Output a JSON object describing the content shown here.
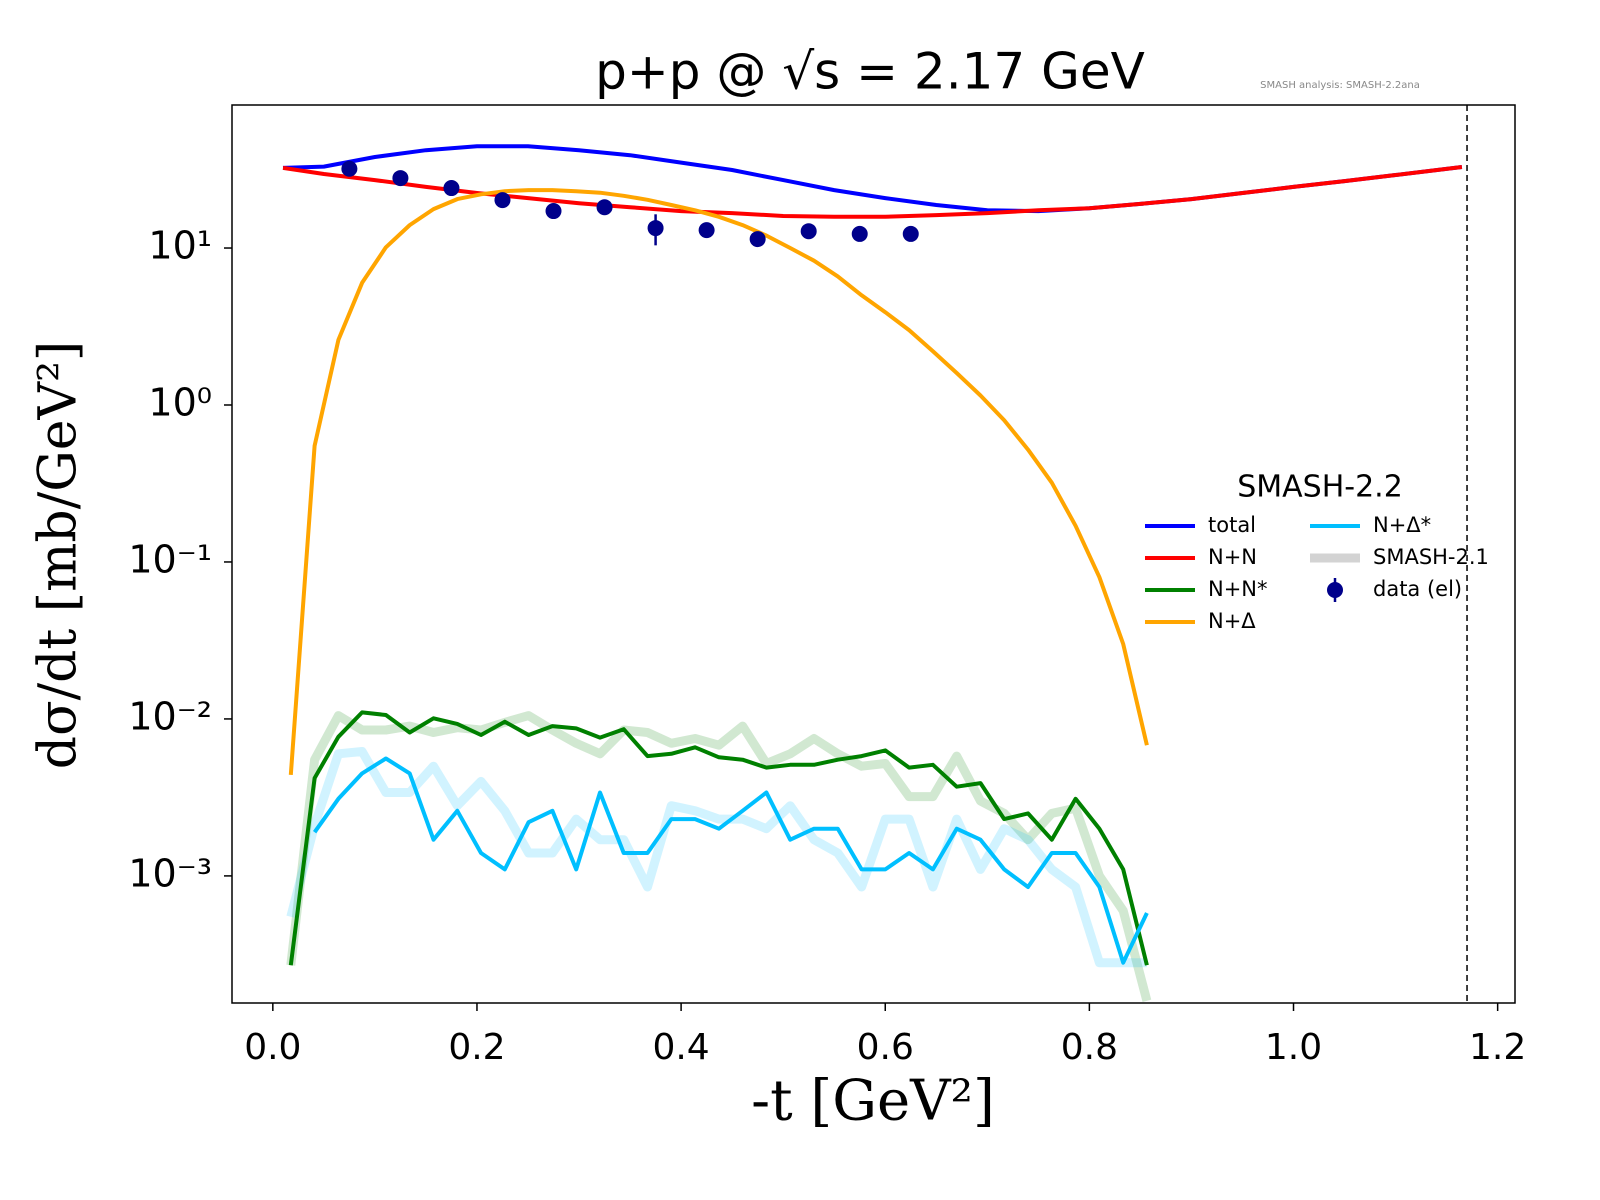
{
  "chart_data": {
    "type": "line",
    "title": "p+p @ √s = 2.17 GeV",
    "annotation": "SMASH analysis: SMASH-2.2ana",
    "x_label": "-t [GeV²]",
    "y_label": "dσ/dt [mb/GeV²]",
    "legend_title": "SMASH-2.2",
    "legend": "center right",
    "log_y": true,
    "xlim": [
      -0.04,
      1.217
    ],
    "ylim": [
      0.000155,
      81.5
    ],
    "xticks": [
      {
        "value": 0,
        "label": "0.0"
      },
      0.2,
      0.4,
      0.6,
      0.8,
      {
        "value": 1,
        "label": "1.0"
      },
      1.2
    ],
    "yticks": [
      {
        "value": 0.001,
        "label": "10⁻³"
      },
      {
        "value": 0.01,
        "label": "10⁻²"
      },
      {
        "value": 0.1,
        "label": "10⁻¹"
      },
      {
        "value": 1,
        "label": "10⁰"
      },
      {
        "value": 10,
        "label": "10¹"
      }
    ],
    "vline": 1.17,
    "x": [
      0.0176,
      0.0409,
      0.0642,
      0.0875,
      0.1108,
      0.1341,
      0.1574,
      0.1807,
      0.204,
      0.2273,
      0.2506,
      0.2739,
      0.2972,
      0.3205,
      0.3438,
      0.3671,
      0.3904,
      0.4137,
      0.437,
      0.4603,
      0.4836,
      0.5069,
      0.5302,
      0.5535,
      0.5768,
      0.6001,
      0.6234,
      0.6467,
      0.67,
      0.6933,
      0.7166,
      0.7399,
      0.7632,
      0.7865,
      0.8098,
      0.8331,
      0.8564
    ],
    "series": [
      {
        "name": "total",
        "color": "#0000ff",
        "x": [
          0.01,
          0.05,
          0.1,
          0.15,
          0.2,
          0.25,
          0.3,
          0.35,
          0.4,
          0.45,
          0.5,
          0.55,
          0.6,
          0.65,
          0.7,
          0.75,
          0.8,
          0.85,
          0.9,
          0.95,
          1.0,
          1.05,
          1.1,
          1.165
        ],
        "values": [
          32.4,
          33,
          38,
          42,
          44.5,
          44.5,
          42,
          39,
          35,
          31.4,
          27.1,
          23.4,
          20.8,
          18.8,
          17.4,
          17.2,
          17.9,
          19.1,
          20.5,
          22.4,
          24.5,
          26.7,
          29.2,
          32.8
        ]
      },
      {
        "name": "N+N",
        "color": "#ff0000",
        "x": [
          0.01,
          0.05,
          0.1,
          0.15,
          0.2,
          0.25,
          0.3,
          0.35,
          0.4,
          0.45,
          0.5,
          0.55,
          0.6,
          0.65,
          0.7,
          0.75,
          0.8,
          0.85,
          0.9,
          0.95,
          1.0,
          1.05,
          1.1,
          1.165
        ],
        "values": [
          32.4,
          29.6,
          27.1,
          24.5,
          22.4,
          20.8,
          19.3,
          18.2,
          17.2,
          16.7,
          16.0,
          15.8,
          15.8,
          16.2,
          16.7,
          17.4,
          17.9,
          19.1,
          20.5,
          22.4,
          24.5,
          26.7,
          29.2,
          32.8
        ]
      },
      {
        "name": "N+N*",
        "color": "#008000",
        "values": [
          0.00027,
          0.0042,
          0.0077,
          0.011,
          0.0106,
          0.0082,
          0.0101,
          0.0093,
          0.0079,
          0.0096,
          0.0079,
          0.009,
          0.0087,
          0.0076,
          0.0086,
          0.0058,
          0.006,
          0.0066,
          0.0057,
          0.0055,
          0.0049,
          0.0051,
          0.0051,
          0.0055,
          0.0058,
          0.0063,
          0.0049,
          0.0051,
          0.0037,
          0.0039,
          0.0023,
          0.0025,
          0.0017,
          0.0031,
          0.002,
          0.0011,
          0.00027
        ]
      },
      {
        "name": "N+Δ",
        "color": "#ffa500",
        "values": [
          0.0044,
          0.55,
          2.6,
          6.0,
          10.1,
          14,
          17.7,
          20.5,
          22,
          23,
          23.4,
          23.4,
          23,
          22.5,
          21.5,
          20.3,
          18.8,
          17.4,
          15.8,
          14,
          12,
          10,
          8.3,
          6.6,
          5.0,
          3.9,
          3.0,
          2.2,
          1.6,
          1.15,
          0.8,
          0.52,
          0.32,
          0.17,
          0.08,
          0.03,
          0.0068
        ]
      },
      {
        "name": "N+Δ*",
        "color": "#00bfff",
        "values": [
          null,
          0.0019,
          0.0031,
          0.0045,
          0.0056,
          0.0045,
          0.0017,
          0.0026,
          0.0014,
          0.0011,
          0.0022,
          0.0026,
          0.0011,
          0.0034,
          0.0014,
          0.0014,
          0.0023,
          0.0023,
          0.002,
          0.0026,
          0.0034,
          0.0017,
          0.002,
          0.002,
          0.0011,
          0.0011,
          0.0014,
          0.0011,
          0.002,
          0.0017,
          0.0011,
          0.00085,
          0.0014,
          0.0014,
          0.00085,
          0.00028,
          0.00058
        ]
      }
    ],
    "reference": {
      "name": "SMASH-2.1",
      "color": "#d3d3d3",
      "lines": [
        {
          "color": "#008000",
          "values": [
            0.00027,
            0.0055,
            0.0105,
            0.0085,
            0.0085,
            0.009,
            0.0082,
            0.0088,
            0.0085,
            0.0095,
            0.0105,
            0.0085,
            0.007,
            0.006,
            0.0085,
            0.0082,
            0.007,
            0.0075,
            0.0068,
            0.009,
            0.0052,
            0.006,
            0.0075,
            0.006,
            0.005,
            0.0052,
            0.0032,
            0.0032,
            0.0058,
            0.003,
            0.0025,
            0.0017,
            0.0025,
            0.0027,
            0.001,
            0.0006,
            0.00016
          ]
        },
        {
          "color": "#00bfff",
          "values": [
            0.00055,
            0.0021,
            0.006,
            0.0062,
            0.0034,
            0.0034,
            0.005,
            0.0028,
            0.004,
            0.0026,
            0.0014,
            0.0014,
            0.0023,
            0.0017,
            0.0017,
            0.00085,
            0.0028,
            0.0026,
            0.0023,
            0.0023,
            0.002,
            0.0028,
            0.0017,
            0.0014,
            0.00085,
            0.0023,
            0.0023,
            0.00085,
            0.0023,
            0.0011,
            0.002,
            0.0017,
            0.0011,
            0.00085,
            0.00028,
            0.00028,
            0.00028
          ]
        }
      ]
    },
    "data": {
      "name": "data (el)",
      "color": "#00008b",
      "x": [
        0.075,
        0.125,
        0.175,
        0.225,
        0.275,
        0.325,
        0.375,
        0.425,
        0.475,
        0.525,
        0.575,
        0.625
      ],
      "values": [
        32,
        27.9,
        24.1,
        20.2,
        17.2,
        18.2,
        13.4,
        13.0,
        11.4,
        12.8,
        12.3,
        12.3
      ],
      "errors": [
        0.5,
        0.5,
        0.5,
        0.5,
        0.5,
        0.5,
        3.0,
        0.5,
        0.5,
        0.5,
        0.5,
        0.5
      ]
    }
  }
}
